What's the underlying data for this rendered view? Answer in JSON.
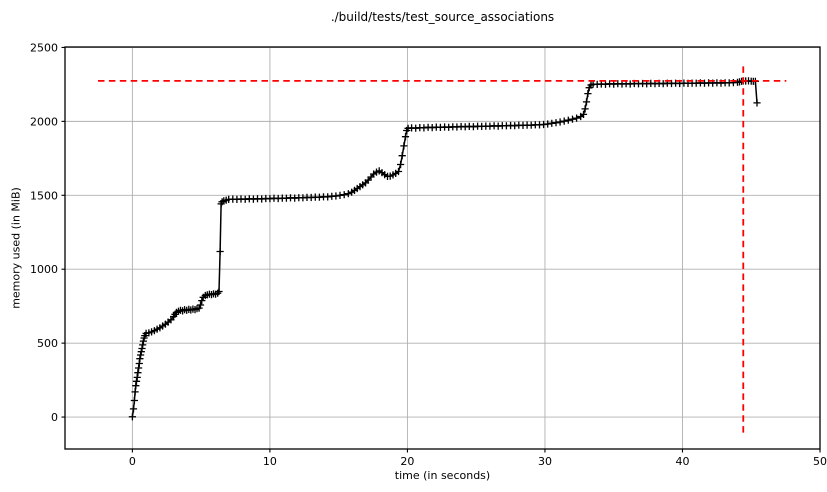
{
  "chart_data": {
    "type": "line",
    "title": "./build/tests/test_source_associations",
    "xlabel": "time (in seconds)",
    "ylabel": "memory used (in MiB)",
    "xlim": [
      -4.9,
      50
    ],
    "ylim": [
      -216,
      2503
    ],
    "xticks": [
      0,
      10,
      20,
      30,
      40,
      50
    ],
    "yticks": [
      0,
      500,
      1000,
      1500,
      2000,
      2500
    ],
    "grid": true,
    "legend": false,
    "colors": {
      "line": "#000000",
      "max_line": "#ff0000",
      "grid": "#b0b0b0",
      "spine": "#000000",
      "background": "#ffffff",
      "text": "#000000"
    },
    "marker": "+",
    "ref_lines": [
      {
        "name": "max-memory-hline",
        "orientation": "horizontal",
        "y": 2274,
        "x0": -2.5,
        "x1": 47.55,
        "color": "#ff0000",
        "style": "dashed"
      },
      {
        "name": "max-time-vline",
        "orientation": "vertical",
        "x": 44.42,
        "y0": -105,
        "y1": 2400,
        "color": "#ff0000",
        "style": "dashed"
      }
    ],
    "series": [
      {
        "name": "memory usage",
        "color": "#000000",
        "points": [
          [
            0,
            2
          ],
          [
            0.08,
            55
          ],
          [
            0.15,
            112
          ],
          [
            0.2,
            170
          ],
          [
            0.25,
            212
          ],
          [
            0.3,
            242
          ],
          [
            0.35,
            268
          ],
          [
            0.4,
            300
          ],
          [
            0.45,
            332
          ],
          [
            0.5,
            362
          ],
          [
            0.55,
            395
          ],
          [
            0.6,
            420
          ],
          [
            0.65,
            442
          ],
          [
            0.7,
            464
          ],
          [
            0.75,
            488
          ],
          [
            0.8,
            514
          ],
          [
            0.85,
            535
          ],
          [
            0.9,
            551
          ],
          [
            1.0,
            566
          ],
          [
            1.2,
            570
          ],
          [
            1.4,
            576
          ],
          [
            1.6,
            584
          ],
          [
            1.8,
            594
          ],
          [
            2.0,
            604
          ],
          [
            2.2,
            616
          ],
          [
            2.4,
            628
          ],
          [
            2.6,
            642
          ],
          [
            2.8,
            658
          ],
          [
            3.0,
            680
          ],
          [
            3.1,
            695
          ],
          [
            3.2,
            708
          ],
          [
            3.35,
            716
          ],
          [
            3.5,
            722
          ],
          [
            3.65,
            718
          ],
          [
            3.8,
            726
          ],
          [
            3.95,
            722
          ],
          [
            4.1,
            728
          ],
          [
            4.25,
            724
          ],
          [
            4.4,
            730
          ],
          [
            4.55,
            727
          ],
          [
            4.7,
            733
          ],
          [
            4.85,
            737
          ],
          [
            4.95,
            758
          ],
          [
            5.05,
            788
          ],
          [
            5.15,
            810
          ],
          [
            5.3,
            822
          ],
          [
            5.45,
            827
          ],
          [
            5.6,
            831
          ],
          [
            5.75,
            828
          ],
          [
            5.9,
            834
          ],
          [
            6.05,
            831
          ],
          [
            6.2,
            838
          ],
          [
            6.3,
            849
          ],
          [
            6.38,
            1120
          ],
          [
            6.45,
            1442
          ],
          [
            6.52,
            1456
          ],
          [
            6.65,
            1463
          ],
          [
            6.82,
            1467
          ],
          [
            7.0,
            1472
          ],
          [
            7.3,
            1474
          ],
          [
            7.6,
            1472
          ],
          [
            7.9,
            1475
          ],
          [
            8.2,
            1473
          ],
          [
            8.5,
            1476
          ],
          [
            8.8,
            1474
          ],
          [
            9.1,
            1477
          ],
          [
            9.4,
            1475
          ],
          [
            9.7,
            1478
          ],
          [
            10.0,
            1477
          ],
          [
            10.3,
            1480
          ],
          [
            10.6,
            1478
          ],
          [
            10.9,
            1481
          ],
          [
            11.2,
            1480
          ],
          [
            11.5,
            1483
          ],
          [
            11.8,
            1481
          ],
          [
            12.1,
            1484
          ],
          [
            12.4,
            1483
          ],
          [
            12.7,
            1486
          ],
          [
            13.0,
            1485
          ],
          [
            13.3,
            1488
          ],
          [
            13.6,
            1487
          ],
          [
            13.9,
            1490
          ],
          [
            14.2,
            1489
          ],
          [
            14.5,
            1493
          ],
          [
            14.8,
            1495
          ],
          [
            15.1,
            1499
          ],
          [
            15.4,
            1504
          ],
          [
            15.7,
            1511
          ],
          [
            15.95,
            1521
          ],
          [
            16.15,
            1533
          ],
          [
            16.35,
            1546
          ],
          [
            16.55,
            1559
          ],
          [
            16.75,
            1571
          ],
          [
            16.95,
            1584
          ],
          [
            17.15,
            1603
          ],
          [
            17.35,
            1624
          ],
          [
            17.55,
            1644
          ],
          [
            17.75,
            1657
          ],
          [
            17.95,
            1665
          ],
          [
            18.15,
            1653
          ],
          [
            18.35,
            1639
          ],
          [
            18.55,
            1628
          ],
          [
            18.75,
            1630
          ],
          [
            18.95,
            1638
          ],
          [
            19.15,
            1648
          ],
          [
            19.35,
            1661
          ],
          [
            19.5,
            1708
          ],
          [
            19.62,
            1768
          ],
          [
            19.74,
            1834
          ],
          [
            19.86,
            1896
          ],
          [
            19.95,
            1938
          ],
          [
            20.05,
            1953
          ],
          [
            20.3,
            1956
          ],
          [
            20.6,
            1954
          ],
          [
            20.9,
            1958
          ],
          [
            21.2,
            1956
          ],
          [
            21.5,
            1960
          ],
          [
            21.8,
            1958
          ],
          [
            22.1,
            1961
          ],
          [
            22.4,
            1959
          ],
          [
            22.7,
            1962
          ],
          [
            23.0,
            1960
          ],
          [
            23.3,
            1963
          ],
          [
            23.6,
            1962
          ],
          [
            23.9,
            1965
          ],
          [
            24.2,
            1963
          ],
          [
            24.5,
            1966
          ],
          [
            24.8,
            1964
          ],
          [
            25.1,
            1967
          ],
          [
            25.4,
            1966
          ],
          [
            25.7,
            1968
          ],
          [
            26.0,
            1967
          ],
          [
            26.3,
            1970
          ],
          [
            26.6,
            1968
          ],
          [
            26.9,
            1971
          ],
          [
            27.2,
            1970
          ],
          [
            27.5,
            1972
          ],
          [
            27.8,
            1971
          ],
          [
            28.1,
            1974
          ],
          [
            28.4,
            1973
          ],
          [
            28.7,
            1975
          ],
          [
            29.0,
            1974
          ],
          [
            29.3,
            1977
          ],
          [
            29.6,
            1976
          ],
          [
            29.9,
            1979
          ],
          [
            30.2,
            1982
          ],
          [
            30.5,
            1987
          ],
          [
            30.8,
            1991
          ],
          [
            31.1,
            1996
          ],
          [
            31.4,
            2002
          ],
          [
            31.7,
            2008
          ],
          [
            32.0,
            2015
          ],
          [
            32.3,
            2022
          ],
          [
            32.6,
            2033
          ],
          [
            32.8,
            2047
          ],
          [
            32.92,
            2084
          ],
          [
            33.02,
            2132
          ],
          [
            33.12,
            2188
          ],
          [
            33.22,
            2228
          ],
          [
            33.35,
            2246
          ],
          [
            33.5,
            2252
          ],
          [
            33.8,
            2250
          ],
          [
            34.1,
            2253
          ],
          [
            34.4,
            2251
          ],
          [
            34.7,
            2254
          ],
          [
            35.0,
            2252
          ],
          [
            35.3,
            2255
          ],
          [
            35.6,
            2253
          ],
          [
            35.9,
            2255
          ],
          [
            36.2,
            2253
          ],
          [
            36.5,
            2256
          ],
          [
            36.8,
            2254
          ],
          [
            37.1,
            2256
          ],
          [
            37.4,
            2254
          ],
          [
            37.7,
            2257
          ],
          [
            38.0,
            2255
          ],
          [
            38.3,
            2257
          ],
          [
            38.6,
            2255
          ],
          [
            38.9,
            2258
          ],
          [
            39.2,
            2256
          ],
          [
            39.5,
            2258
          ],
          [
            39.8,
            2256
          ],
          [
            40.1,
            2259
          ],
          [
            40.4,
            2257
          ],
          [
            40.7,
            2259
          ],
          [
            41.0,
            2258
          ],
          [
            41.3,
            2260
          ],
          [
            41.6,
            2258
          ],
          [
            41.9,
            2260
          ],
          [
            42.2,
            2259
          ],
          [
            42.5,
            2261
          ],
          [
            42.8,
            2259
          ],
          [
            43.1,
            2261
          ],
          [
            43.4,
            2260
          ],
          [
            43.7,
            2262
          ],
          [
            44.0,
            2264
          ],
          [
            44.15,
            2267
          ],
          [
            44.3,
            2271
          ],
          [
            44.42,
            2274
          ],
          [
            44.6,
            2273
          ],
          [
            44.8,
            2274
          ],
          [
            45.0,
            2272
          ],
          [
            45.15,
            2271
          ],
          [
            45.3,
            2270
          ],
          [
            45.42,
            2125
          ]
        ]
      }
    ]
  }
}
